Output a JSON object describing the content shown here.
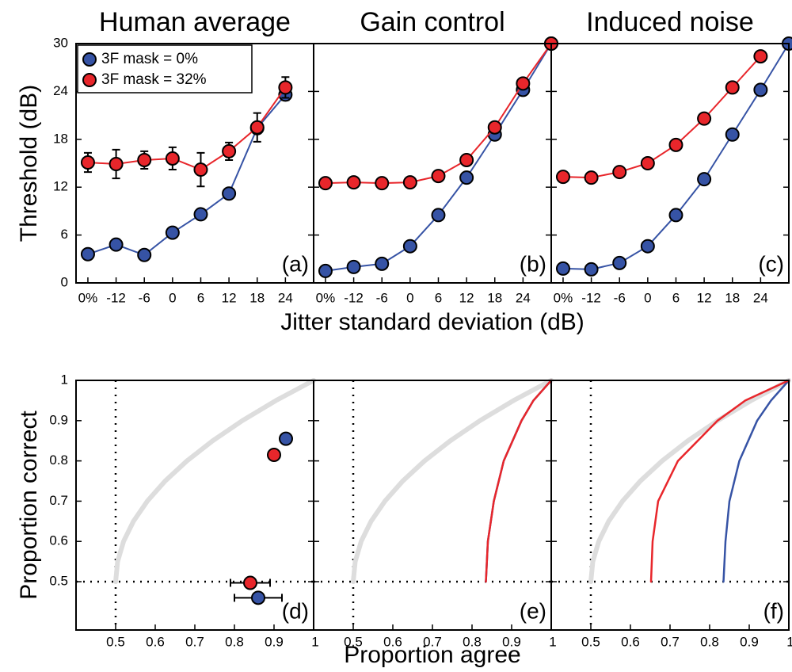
{
  "chart_data": [
    {
      "type": "line",
      "title": "Human average",
      "panel_label": "(a)",
      "ylabel": "Threshold (dB)",
      "categories": [
        "0%",
        "-12",
        "-6",
        "0",
        "6",
        "12",
        "18",
        "24",
        null
      ],
      "ylim": [
        0,
        30
      ],
      "yticks": [
        0,
        6,
        12,
        18,
        24,
        30
      ],
      "ytick_labels": true,
      "markers": true,
      "legend": "upper left",
      "series": [
        {
          "name": "3F mask = 0%",
          "color": "#3653a5",
          "values": [
            3.6,
            4.8,
            3.5,
            6.3,
            8.6,
            11.2,
            19.4,
            23.6,
            null
          ],
          "errors": [
            null,
            null,
            null,
            null,
            null,
            null,
            null,
            0.7,
            null
          ]
        },
        {
          "name": "3F mask = 32%",
          "color": "#e8262b",
          "values": [
            15.1,
            14.9,
            15.4,
            15.6,
            14.2,
            16.5,
            19.5,
            24.5,
            null
          ],
          "errors": [
            1.2,
            1.8,
            1.1,
            1.4,
            2.1,
            1.1,
            1.8,
            1.3,
            null
          ]
        }
      ]
    },
    {
      "type": "line",
      "title": "Gain control",
      "panel_label": "(b)",
      "xlabel": "Jitter standard deviation (dB)",
      "categories": [
        "0%",
        "-12",
        "-6",
        "0",
        "6",
        "12",
        "18",
        "24",
        null
      ],
      "ylim": [
        0,
        30
      ],
      "yticks": [
        0,
        6,
        12,
        18,
        24,
        30
      ],
      "ytick_labels": false,
      "markers": true,
      "series": [
        {
          "color": "#3653a5",
          "values": [
            1.5,
            2.0,
            2.4,
            4.6,
            8.5,
            13.2,
            18.6,
            24.2,
            30
          ]
        },
        {
          "color": "#e8262b",
          "values": [
            12.5,
            12.6,
            12.5,
            12.6,
            13.4,
            15.4,
            19.5,
            25.0,
            30
          ]
        }
      ]
    },
    {
      "type": "line",
      "title": "Induced noise",
      "panel_label": "(c)",
      "categories": [
        "0%",
        "-12",
        "-6",
        "0",
        "6",
        "12",
        "18",
        "24",
        null
      ],
      "ylim": [
        0,
        30
      ],
      "yticks": [
        0,
        6,
        12,
        18,
        24,
        30
      ],
      "ytick_labels": false,
      "markers": true,
      "series": [
        {
          "color": "#3653a5",
          "values": [
            1.8,
            1.7,
            2.5,
            4.6,
            8.5,
            13.0,
            18.6,
            24.2,
            30
          ]
        },
        {
          "color": "#e8262b",
          "values": [
            13.3,
            13.2,
            13.9,
            15.0,
            17.3,
            20.6,
            24.5,
            28.4,
            null
          ]
        }
      ]
    },
    {
      "type": "scatter",
      "panel_label": "(d)",
      "ylabel": "Proportion correct",
      "xlim": [
        0.4,
        1
      ],
      "ylim": [
        0.38,
        1
      ],
      "xticks": [
        0.5,
        0.6,
        0.7,
        0.8,
        0.9,
        1
      ],
      "yticks": [
        0.5,
        0.6,
        0.7,
        0.8,
        0.9,
        1
      ],
      "ytick_labels": true,
      "reference_lines": {
        "x": 0.5,
        "y": 0.5
      },
      "curve": {
        "color": "#dddddd",
        "x": [
          0.5,
          0.505,
          0.52,
          0.545,
          0.58,
          0.625,
          0.68,
          0.745,
          0.82,
          0.905,
          1
        ],
        "values": [
          0.5,
          0.55,
          0.6,
          0.65,
          0.7,
          0.75,
          0.8,
          0.85,
          0.9,
          0.95,
          1
        ]
      },
      "series": [
        {
          "color": "#3653a5",
          "x": [
            0.93,
            0.86
          ],
          "values": [
            0.855,
            0.46
          ],
          "xerr": [
            0.01,
            0.06
          ],
          "yerr": [
            0.01,
            0.01
          ]
        },
        {
          "color": "#e8262b",
          "x": [
            0.9,
            0.84
          ],
          "values": [
            0.815,
            0.497
          ],
          "xerr": [
            0.01,
            0.05
          ],
          "yerr": [
            0.005,
            0.005
          ]
        }
      ]
    },
    {
      "type": "line",
      "panel_label": "(e)",
      "xlabel": "Proportion agree",
      "xlim": [
        0.4,
        1
      ],
      "ylim": [
        0.38,
        1
      ],
      "xticks": [
        0.5,
        0.6,
        0.7,
        0.8,
        0.9,
        1
      ],
      "yticks": [
        0.5,
        0.6,
        0.7,
        0.8,
        0.9,
        1
      ],
      "ytick_labels": false,
      "markers": false,
      "reference_lines": {
        "x": 0.5,
        "y": 0.5
      },
      "curve": {
        "color": "#dddddd",
        "x": [
          0.5,
          0.505,
          0.52,
          0.545,
          0.58,
          0.625,
          0.68,
          0.745,
          0.82,
          0.905,
          1
        ],
        "values": [
          0.5,
          0.55,
          0.6,
          0.65,
          0.7,
          0.75,
          0.8,
          0.85,
          0.9,
          0.95,
          1
        ]
      },
      "series": [
        {
          "color": "#3653a5",
          "x": [
            0.835,
            0.84,
            0.855,
            0.88,
            0.925,
            0.955,
            1
          ],
          "values": [
            0.5,
            0.6,
            0.7,
            0.8,
            0.9,
            0.95,
            1
          ]
        },
        {
          "color": "#e8262b",
          "x": [
            0.835,
            0.84,
            0.855,
            0.88,
            0.925,
            0.955,
            1
          ],
          "values": [
            0.5,
            0.6,
            0.7,
            0.8,
            0.9,
            0.95,
            1
          ]
        }
      ]
    },
    {
      "type": "line",
      "panel_label": "(f)",
      "xlim": [
        0.4,
        1
      ],
      "ylim": [
        0.38,
        1
      ],
      "xticks": [
        0.5,
        0.6,
        0.7,
        0.8,
        0.9,
        1
      ],
      "yticks": [
        0.5,
        0.6,
        0.7,
        0.8,
        0.9,
        1
      ],
      "ytick_labels": false,
      "markers": false,
      "reference_lines": {
        "x": 0.5,
        "y": 0.5
      },
      "curve": {
        "color": "#dddddd",
        "x": [
          0.5,
          0.505,
          0.52,
          0.545,
          0.58,
          0.625,
          0.68,
          0.745,
          0.82,
          0.905,
          1
        ],
        "values": [
          0.5,
          0.55,
          0.6,
          0.65,
          0.7,
          0.75,
          0.8,
          0.85,
          0.9,
          0.95,
          1
        ]
      },
      "series": [
        {
          "color": "#3653a5",
          "x": [
            0.835,
            0.84,
            0.85,
            0.875,
            0.92,
            0.955,
            1
          ],
          "values": [
            0.5,
            0.6,
            0.7,
            0.8,
            0.9,
            0.95,
            1
          ]
        },
        {
          "color": "#e8262b",
          "x": [
            0.652,
            0.656,
            0.67,
            0.72,
            0.82,
            0.89,
            1
          ],
          "values": [
            0.5,
            0.6,
            0.7,
            0.8,
            0.9,
            0.95,
            1
          ]
        }
      ]
    }
  ]
}
